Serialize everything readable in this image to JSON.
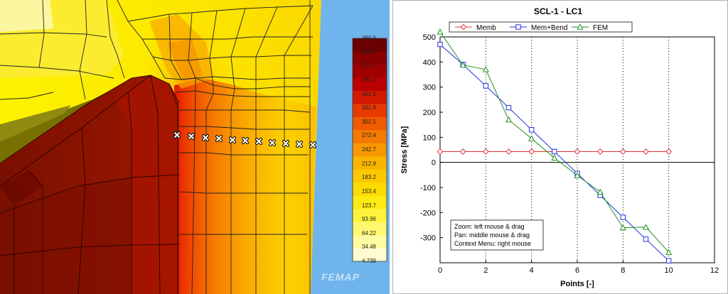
{
  "viewport": {
    "watermark": "FEMAP",
    "legend": {
      "labels": [
        "480.6",
        "450.8",
        "421.1",
        "391.4",
        "361.6",
        "331.9",
        "302.1",
        "272.4",
        "242.7",
        "212.9",
        "183.2",
        "153.4",
        "123.7",
        "93.96",
        "64.22",
        "34.48",
        "4.739"
      ],
      "colors": [
        "#6b0000",
        "#8a0000",
        "#a00000",
        "#bb0000",
        "#d41800",
        "#e63a00",
        "#f05a00",
        "#f47a00",
        "#f89800",
        "#fbb400",
        "#fcc800",
        "#fdda00",
        "#feea10",
        "#fff23c",
        "#fff870",
        "#fffba0",
        "#fffdd0"
      ]
    },
    "background_color": "#6fb4ec"
  },
  "chart_data": {
    "type": "line",
    "title": "SCL-1 - LC1",
    "xlabel": "Points [-]",
    "ylabel": "Stress [MPa]",
    "xlim": [
      0,
      12
    ],
    "ylim": [
      -400,
      500
    ],
    "xticks": [
      0,
      2,
      4,
      6,
      8,
      10,
      12
    ],
    "yticks": [
      500,
      400,
      300,
      200,
      100,
      0,
      -100,
      -200,
      -300
    ],
    "x": [
      0,
      1,
      2,
      3,
      4,
      5,
      6,
      7,
      8,
      9,
      10
    ],
    "series": [
      {
        "name": "Memb",
        "color": "#e03030",
        "marker": "diamond",
        "values": [
          43,
          43,
          43,
          43,
          43,
          43,
          43,
          43,
          43,
          43,
          43
        ]
      },
      {
        "name": "Mem+Bend",
        "color": "#2030e0",
        "marker": "square",
        "values": [
          470,
          390,
          305,
          218,
          130,
          43,
          -44,
          -131,
          -219,
          -306,
          -392
        ]
      },
      {
        "name": "FEM",
        "color": "#209020",
        "marker": "triangle",
        "values": [
          520,
          388,
          370,
          170,
          95,
          18,
          -52,
          -118,
          -260,
          -258,
          -358
        ]
      }
    ],
    "grid": "vertical-dotted",
    "legend_position": "top"
  },
  "chart_info": {
    "lines": [
      "Zoom: left mouse & drag",
      "Pan: middle mouse & drag",
      "Context Menu: right mouse"
    ]
  }
}
